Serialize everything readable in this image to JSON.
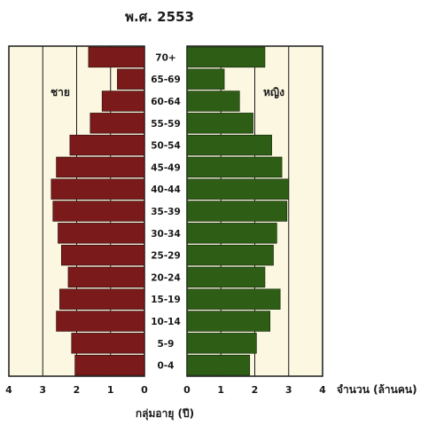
{
  "chart_data": {
    "type": "bar",
    "title": "พ.ศ. 2553",
    "categories": [
      "0-4",
      "5-9",
      "10-14",
      "15-19",
      "20-24",
      "25-29",
      "30-34",
      "35-39",
      "40-44",
      "45-49",
      "50-54",
      "55-59",
      "60-64",
      "65-69",
      "70+"
    ],
    "series": [
      {
        "name": "ชาย",
        "values": [
          2.05,
          2.15,
          2.6,
          2.5,
          2.25,
          2.45,
          2.55,
          2.7,
          2.75,
          2.6,
          2.2,
          1.6,
          1.25,
          0.8,
          1.65
        ],
        "color": "#7a1a1a"
      },
      {
        "name": "หญิง",
        "values": [
          1.85,
          2.05,
          2.45,
          2.75,
          2.3,
          2.55,
          2.65,
          2.95,
          3.0,
          2.8,
          2.5,
          1.95,
          1.55,
          1.1,
          2.3
        ],
        "color": "#2e5e16"
      }
    ],
    "xlim": [
      0,
      4
    ],
    "left_ticks": [
      "4",
      "3",
      "2",
      "1",
      "0"
    ],
    "right_ticks": [
      "0",
      "1",
      "2",
      "3",
      "4"
    ],
    "xlabel": "จำนวน (ล้านคน)",
    "ylabel": "กลุ่มอายุ (ปี)",
    "grid": true,
    "background_color": "#fbf7e0"
  }
}
